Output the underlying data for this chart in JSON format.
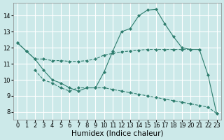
{
  "background_color": "#cce9e9",
  "grid_color": "#ffffff",
  "line_color": "#2e7d6e",
  "marker": "D",
  "markersize": 2.0,
  "linewidth": 0.8,
  "xlabel": "Humidex (Indice chaleur)",
  "xlabel_fontsize": 7.5,
  "tick_fontsize": 6.0,
  "ylim": [
    7.5,
    14.8
  ],
  "xlim": [
    -0.5,
    23.5
  ],
  "yticks": [
    8,
    9,
    10,
    11,
    12,
    13,
    14
  ],
  "xticks": [
    0,
    1,
    2,
    3,
    4,
    5,
    6,
    7,
    8,
    9,
    10,
    11,
    12,
    13,
    14,
    15,
    16,
    17,
    18,
    19,
    20,
    21,
    22,
    23
  ],
  "series1_x": [
    0,
    1,
    2,
    3,
    4,
    5,
    6,
    7,
    8,
    9,
    10,
    11,
    12,
    13,
    14,
    15,
    16,
    17,
    18,
    19,
    20,
    21
  ],
  "series1_y": [
    12.3,
    11.8,
    11.3,
    11.3,
    11.2,
    11.2,
    11.15,
    11.15,
    11.2,
    11.3,
    11.55,
    11.65,
    11.75,
    11.8,
    11.85,
    11.9,
    11.9,
    11.9,
    11.9,
    11.9,
    11.9,
    11.9
  ],
  "series2_x": [
    0,
    1,
    2,
    3,
    4,
    5,
    6,
    7,
    8,
    9,
    10,
    11,
    12,
    13,
    14,
    15,
    16,
    17,
    18,
    19,
    20,
    21,
    22,
    23
  ],
  "series2_y": [
    12.3,
    11.8,
    11.3,
    10.6,
    10.0,
    9.8,
    9.5,
    9.3,
    9.5,
    9.5,
    10.5,
    11.8,
    13.0,
    13.2,
    14.0,
    14.35,
    14.4,
    13.5,
    12.7,
    12.0,
    11.9,
    11.9,
    10.3,
    7.9
  ],
  "series3_x": [
    2,
    3,
    4,
    5,
    6,
    7,
    8,
    9,
    10,
    11,
    12,
    13,
    14,
    15,
    16,
    17,
    18,
    19,
    20,
    21,
    22,
    23
  ],
  "series3_y": [
    10.6,
    10.0,
    9.8,
    9.5,
    9.3,
    9.5,
    9.5,
    9.5,
    9.5,
    9.4,
    9.3,
    9.2,
    9.1,
    9.0,
    8.9,
    8.8,
    8.7,
    8.6,
    8.5,
    8.4,
    8.3,
    7.9
  ]
}
